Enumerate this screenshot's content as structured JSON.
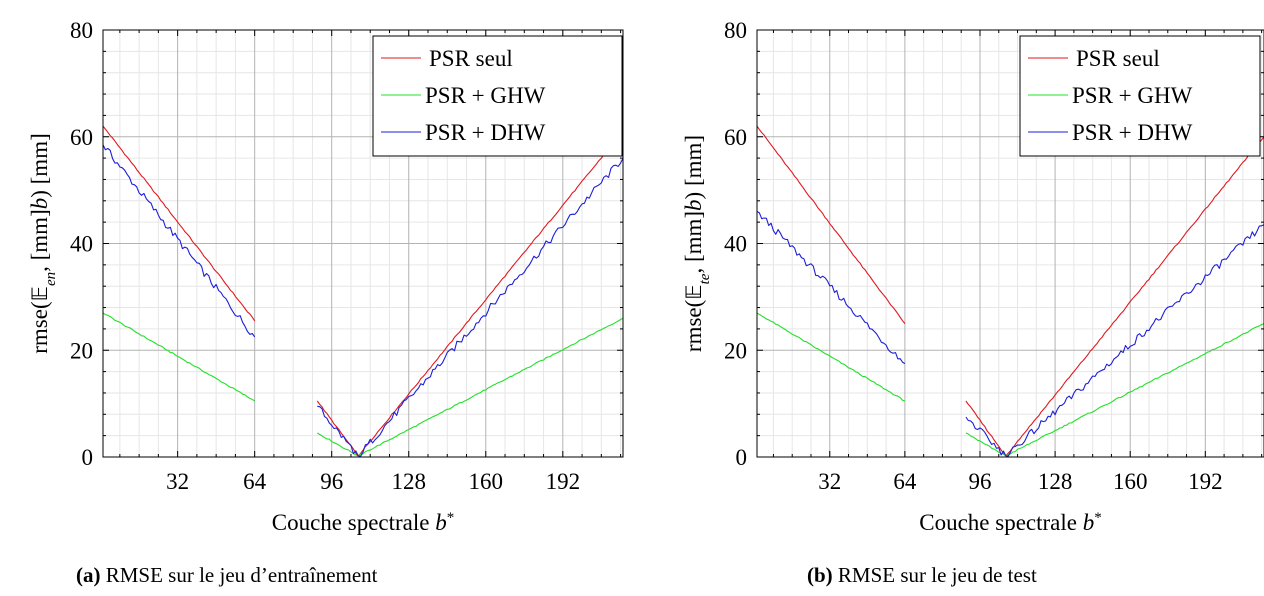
{
  "figures": [
    {
      "caption": {
        "tag": "(a)",
        "text": "RMSE sur le jeu d’entraînement"
      },
      "chart_data": {
        "type": "line",
        "xlabel": "Couche spectrale b*",
        "ylabel": "rmse(𝔼en, b) [mm]",
        "ylabel_parts": {
          "pre": "rmse(",
          "bb": "𝔼",
          "sub": "en",
          "post": ", b) [mm]"
        },
        "xlabel_parts": {
          "text": "Couche spectrale ",
          "var": "b",
          "sup": "*"
        },
        "xlim": [
          1,
          217
        ],
        "ylim": [
          0,
          80
        ],
        "xticks": [
          32,
          64,
          96,
          128,
          160,
          192
        ],
        "yticks": [
          0,
          20,
          40,
          60,
          80
        ],
        "grid": true,
        "legend_position": "top-right",
        "series": [
          {
            "name": "PSR seul",
            "color": "#e0191e",
            "segments": [
              {
                "x": [
                  1,
                  64
                ],
                "y": [
                  62,
                  25.5
                ]
              },
              {
                "x": [
                  90,
                  107
                ],
                "y": [
                  10.5,
                  0.2
                ]
              },
              {
                "x": [
                  107,
                  217
                ],
                "y": [
                  0.2,
                  61
                ]
              }
            ]
          },
          {
            "name": "PSR + GHW",
            "color": "#22e029",
            "segments": [
              {
                "x": [
                  1,
                  64
                ],
                "y": [
                  27,
                  10.5
                ]
              },
              {
                "x": [
                  90,
                  107
                ],
                "y": [
                  4.5,
                  0.2
                ]
              },
              {
                "x": [
                  107,
                  217
                ],
                "y": [
                  0.2,
                  26
                ]
              }
            ]
          },
          {
            "name": "PSR + DHW",
            "color": "#1e1ed8",
            "segments": [
              {
                "x": [
                  1,
                  64
                ],
                "y": [
                  58.5,
                  22.5
                ]
              },
              {
                "x": [
                  90,
                  107
                ],
                "y": [
                  9.5,
                  0.2
                ]
              },
              {
                "x": [
                  107,
                  217
                ],
                "y": [
                  0.2,
                  56
                ]
              }
            ]
          }
        ]
      }
    },
    {
      "caption": {
        "tag": "(b)",
        "text": "RMSE sur le jeu de test"
      },
      "chart_data": {
        "type": "line",
        "xlabel": "Couche spectrale b*",
        "ylabel": "rmse(𝔼te, b) [mm]",
        "ylabel_parts": {
          "pre": "rmse(",
          "bb": "𝔼",
          "sub": "te",
          "post": ", b) [mm]"
        },
        "xlabel_parts": {
          "text": "Couche spectrale ",
          "var": "b",
          "sup": "*"
        },
        "xlim": [
          1,
          217
        ],
        "ylim": [
          0,
          80
        ],
        "xticks": [
          32,
          64,
          96,
          128,
          160,
          192
        ],
        "yticks": [
          0,
          20,
          40,
          60,
          80
        ],
        "grid": true,
        "legend_position": "top-right",
        "series": [
          {
            "name": "PSR seul",
            "color": "#e0191e",
            "segments": [
              {
                "x": [
                  1,
                  64
                ],
                "y": [
                  62,
                  25
                ]
              },
              {
                "x": [
                  90,
                  107
                ],
                "y": [
                  10.5,
                  0.2
                ]
              },
              {
                "x": [
                  107,
                  217
                ],
                "y": [
                  0.2,
                  60
                ]
              }
            ]
          },
          {
            "name": "PSR + GHW",
            "color": "#22e029",
            "segments": [
              {
                "x": [
                  1,
                  64
                ],
                "y": [
                  27,
                  10.5
                ]
              },
              {
                "x": [
                  90,
                  107
                ],
                "y": [
                  4.5,
                  0.2
                ]
              },
              {
                "x": [
                  107,
                  217
                ],
                "y": [
                  0.2,
                  25
                ]
              }
            ]
          },
          {
            "name": "PSR + DHW",
            "color": "#1e1ed8",
            "segments": [
              {
                "x": [
                  1,
                  64
                ],
                "y": [
                  46,
                  17.5
                ]
              },
              {
                "x": [
                  90,
                  107
                ],
                "y": [
                  7.5,
                  0.2
                ]
              },
              {
                "x": [
                  107,
                  217
                ],
                "y": [
                  0.2,
                  43.5
                ]
              }
            ]
          }
        ]
      }
    }
  ]
}
